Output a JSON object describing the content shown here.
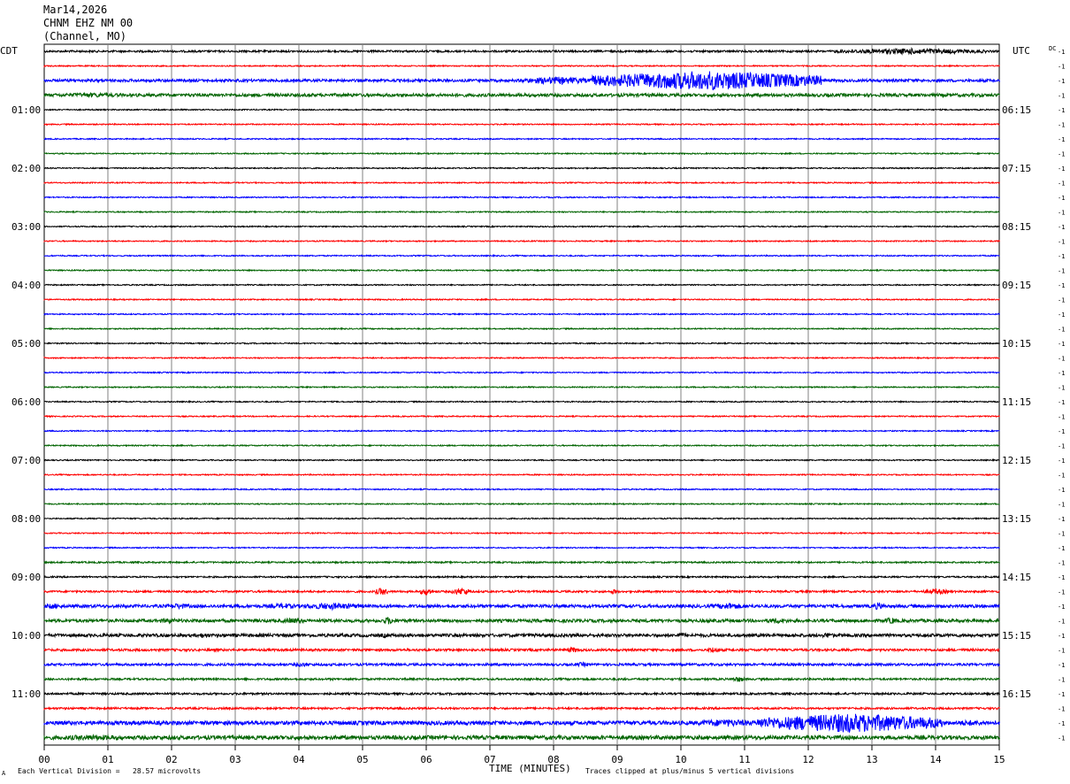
{
  "header": {
    "date": "Mar14,2026",
    "station": "CHNM EHZ NM 00",
    "channel": "(Channel, MO)"
  },
  "left_tz": "CDT",
  "right_tz": "UTC",
  "dc_label": "DC",
  "offset_label": "-1",
  "footer": {
    "scale": "Each Vertical Division =   28.57 microvolts",
    "xlabel": "TIME (MINUTES)",
    "clip": "Traces clipped at plus/minus 5 vertical divisions",
    "corner": "A"
  },
  "colors": {
    "trace_cycle": [
      "#000000",
      "#ff0000",
      "#0000ff",
      "#006400"
    ],
    "grid": "#808080"
  },
  "chart_data": {
    "type": "line",
    "title": "Mar14,2026 CHNM EHZ NM 00 (Channel, MO)",
    "xlabel": "TIME (MINUTES)",
    "ylabel": "",
    "xlim": [
      0,
      15
    ],
    "x_ticks": [
      "00",
      "01",
      "02",
      "03",
      "04",
      "05",
      "06",
      "07",
      "08",
      "09",
      "10",
      "11",
      "12",
      "13",
      "14",
      "15"
    ],
    "trace_count": 48,
    "minutes_per_trace": 15,
    "left_time_labels": [
      {
        "trace": 4,
        "label": "01:00"
      },
      {
        "trace": 8,
        "label": "02:00"
      },
      {
        "trace": 12,
        "label": "03:00"
      },
      {
        "trace": 16,
        "label": "04:00"
      },
      {
        "trace": 20,
        "label": "05:00"
      },
      {
        "trace": 24,
        "label": "06:00"
      },
      {
        "trace": 28,
        "label": "07:00"
      },
      {
        "trace": 32,
        "label": "08:00"
      },
      {
        "trace": 36,
        "label": "09:00"
      },
      {
        "trace": 40,
        "label": "10:00"
      },
      {
        "trace": 44,
        "label": "11:00"
      }
    ],
    "right_time_labels": [
      {
        "trace": 4,
        "label": "06:15"
      },
      {
        "trace": 8,
        "label": "07:15"
      },
      {
        "trace": 12,
        "label": "08:15"
      },
      {
        "trace": 16,
        "label": "09:15"
      },
      {
        "trace": 20,
        "label": "10:15"
      },
      {
        "trace": 24,
        "label": "11:15"
      },
      {
        "trace": 28,
        "label": "12:15"
      },
      {
        "trace": 32,
        "label": "13:15"
      },
      {
        "trace": 36,
        "label": "14:15"
      },
      {
        "trace": 40,
        "label": "15:15"
      },
      {
        "trace": 44,
        "label": "16:15"
      }
    ],
    "noise_amplitude_divisions": [
      0.5,
      0.3,
      0.7,
      0.8,
      0.3,
      0.3,
      0.3,
      0.3,
      0.3,
      0.3,
      0.3,
      0.3,
      0.3,
      0.3,
      0.3,
      0.3,
      0.3,
      0.3,
      0.3,
      0.3,
      0.3,
      0.3,
      0.3,
      0.3,
      0.3,
      0.3,
      0.3,
      0.3,
      0.3,
      0.3,
      0.3,
      0.3,
      0.3,
      0.3,
      0.3,
      0.4,
      0.4,
      0.5,
      0.8,
      0.8,
      0.8,
      0.6,
      0.6,
      0.5,
      0.5,
      0.5,
      1.0,
      1.0
    ],
    "events": [
      {
        "trace": 0,
        "start_min": 12.4,
        "end_min": 14.8,
        "amplitude_divisions": 1.5
      },
      {
        "trace": 2,
        "start_min": 7.5,
        "end_min": 8.6,
        "amplitude_divisions": 2
      },
      {
        "trace": 2,
        "start_min": 8.6,
        "end_min": 12.2,
        "amplitude_divisions": 5
      },
      {
        "trace": 2,
        "start_min": 12.2,
        "end_min": 15,
        "amplitude_divisions": 0.8
      },
      {
        "trace": 3,
        "start_min": 0,
        "end_min": 1.5,
        "amplitude_divisions": 1.2
      },
      {
        "trace": 37,
        "start_min": 5.2,
        "end_min": 5.4,
        "amplitude_divisions": 2
      },
      {
        "trace": 37,
        "start_min": 5.9,
        "end_min": 6.1,
        "amplitude_divisions": 2
      },
      {
        "trace": 37,
        "start_min": 6.4,
        "end_min": 6.7,
        "amplitude_divisions": 2
      },
      {
        "trace": 37,
        "start_min": 8.9,
        "end_min": 9.0,
        "amplitude_divisions": 1.5
      },
      {
        "trace": 37,
        "start_min": 13.8,
        "end_min": 14.2,
        "amplitude_divisions": 1.5
      },
      {
        "trace": 38,
        "start_min": 0,
        "end_min": 0.3,
        "amplitude_divisions": 1.5
      },
      {
        "trace": 38,
        "start_min": 1.9,
        "end_min": 2.3,
        "amplitude_divisions": 1.5
      },
      {
        "trace": 38,
        "start_min": 3.5,
        "end_min": 4.0,
        "amplitude_divisions": 1.5
      },
      {
        "trace": 38,
        "start_min": 4.0,
        "end_min": 5.0,
        "amplitude_divisions": 1.8
      },
      {
        "trace": 38,
        "start_min": 10.5,
        "end_min": 11.0,
        "amplitude_divisions": 1.8
      },
      {
        "trace": 38,
        "start_min": 13.0,
        "end_min": 13.2,
        "amplitude_divisions": 2
      },
      {
        "trace": 39,
        "start_min": 1.8,
        "end_min": 2.1,
        "amplitude_divisions": 1.5
      },
      {
        "trace": 39,
        "start_min": 3.7,
        "end_min": 4.1,
        "amplitude_divisions": 1.5
      },
      {
        "trace": 39,
        "start_min": 5.3,
        "end_min": 5.5,
        "amplitude_divisions": 2
      },
      {
        "trace": 39,
        "start_min": 11.3,
        "end_min": 11.7,
        "amplitude_divisions": 1.5
      },
      {
        "trace": 39,
        "start_min": 13.2,
        "end_min": 13.4,
        "amplitude_divisions": 1.8
      },
      {
        "trace": 40,
        "start_min": 2.4,
        "end_min": 2.6,
        "amplitude_divisions": 1.5
      },
      {
        "trace": 40,
        "start_min": 5.3,
        "end_min": 5.4,
        "amplitude_divisions": 1.5
      },
      {
        "trace": 40,
        "start_min": 9.9,
        "end_min": 10.1,
        "amplitude_divisions": 1.5
      },
      {
        "trace": 40,
        "start_min": 12.2,
        "end_min": 12.4,
        "amplitude_divisions": 1.5
      },
      {
        "trace": 41,
        "start_min": 8.2,
        "end_min": 8.4,
        "amplitude_divisions": 1.5
      },
      {
        "trace": 41,
        "start_min": 10.4,
        "end_min": 10.6,
        "amplitude_divisions": 1.5
      },
      {
        "trace": 42,
        "start_min": 3.9,
        "end_min": 4.2,
        "amplitude_divisions": 1.2
      },
      {
        "trace": 42,
        "start_min": 8.3,
        "end_min": 8.6,
        "amplitude_divisions": 1.2
      },
      {
        "trace": 43,
        "start_min": 10.8,
        "end_min": 11.0,
        "amplitude_divisions": 1.5
      },
      {
        "trace": 46,
        "start_min": 10.2,
        "end_min": 11.2,
        "amplitude_divisions": 2
      },
      {
        "trace": 46,
        "start_min": 11.2,
        "end_min": 14.1,
        "amplitude_divisions": 5
      },
      {
        "trace": 46,
        "start_min": 14.1,
        "end_min": 15,
        "amplitude_divisions": 1.5
      },
      {
        "trace": 47,
        "start_min": 0,
        "end_min": 1.5,
        "amplitude_divisions": 1.5
      }
    ]
  }
}
